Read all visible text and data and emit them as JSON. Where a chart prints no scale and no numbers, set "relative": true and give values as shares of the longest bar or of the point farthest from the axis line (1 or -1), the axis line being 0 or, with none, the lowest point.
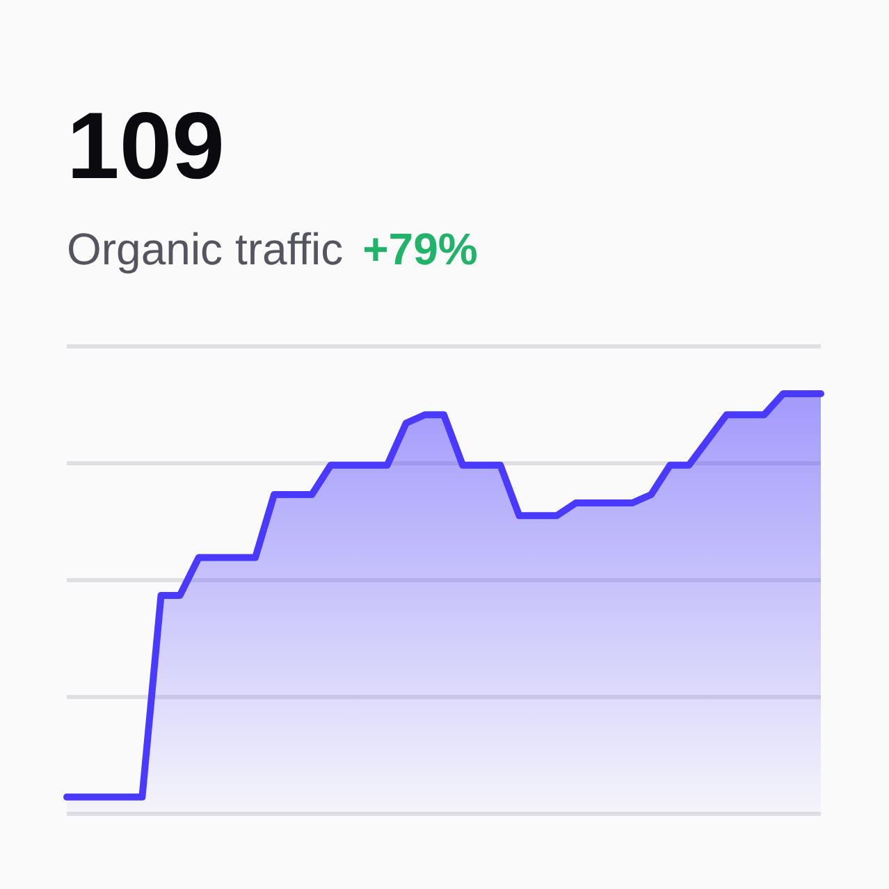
{
  "chart_data": {
    "type": "area",
    "title": "109",
    "subtitle": "Organic traffic",
    "annotations": [
      "+79%"
    ],
    "relative": true,
    "grid": true,
    "categories": [
      null,
      null,
      null,
      null,
      null,
      null,
      null,
      null,
      null,
      null,
      null,
      null,
      null,
      null,
      null,
      null,
      null,
      null,
      null,
      null,
      null,
      null,
      null,
      null,
      null,
      null,
      null,
      null,
      null,
      null,
      null,
      null,
      null,
      null,
      null,
      null,
      null,
      null,
      null,
      null,
      null
    ],
    "series": [
      {
        "color": "#4a3aff",
        "values": [
          0.04,
          0.04,
          0.04,
          0.04,
          0.04,
          0.52,
          0.52,
          0.61,
          0.61,
          0.61,
          0.61,
          0.76,
          0.76,
          0.76,
          0.83,
          0.83,
          0.83,
          0.83,
          0.93,
          0.95,
          0.95,
          0.83,
          0.83,
          0.83,
          0.71,
          0.71,
          0.71,
          0.74,
          0.74,
          0.74,
          0.74,
          0.76,
          0.83,
          0.83,
          0.89,
          0.95,
          0.95,
          0.95,
          1,
          1,
          1
        ]
      }
    ]
  }
}
